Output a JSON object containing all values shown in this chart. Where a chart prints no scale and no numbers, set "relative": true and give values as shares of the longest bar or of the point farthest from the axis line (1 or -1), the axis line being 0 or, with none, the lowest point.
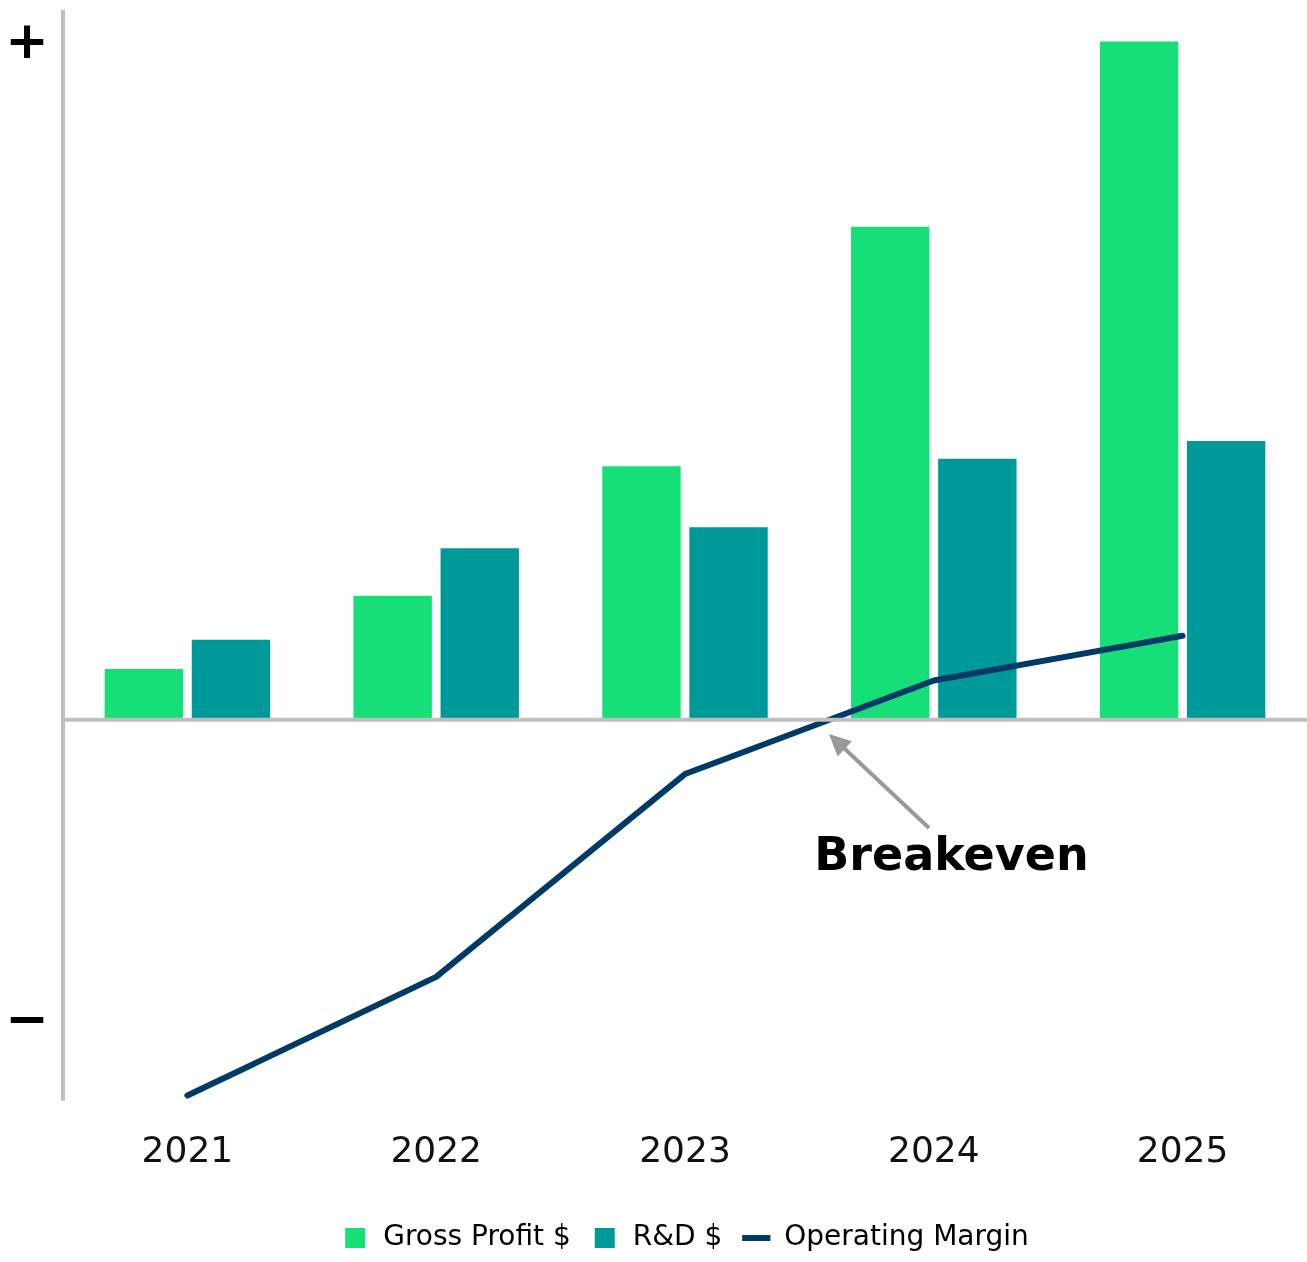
{
  "chart_data": {
    "type": "bar",
    "relative": true,
    "categories": [
      "2021",
      "2022",
      "2023",
      "2024",
      "2025"
    ],
    "series": [
      {
        "name": "Gross Profit $",
        "color": "#16df78",
        "values": [
          0.075,
          0.183,
          0.374,
          0.727,
          1
        ]
      },
      {
        "name": "R&D $",
        "color": "#009999",
        "values": [
          0.118,
          0.253,
          0.284,
          0.385,
          0.411
        ]
      },
      {
        "name": "Operating Margin",
        "type": "line",
        "color": "#003a66",
        "values": [
          -0.554,
          -0.379,
          -0.08,
          0.058,
          0.124
        ]
      }
    ],
    "legend": "bottom",
    "grid": false,
    "marker": "none",
    "line_style": "solid",
    "annotations": [
      "+",
      "−",
      {
        "text": "Breakeven",
        "y": 0
      }
    ]
  }
}
